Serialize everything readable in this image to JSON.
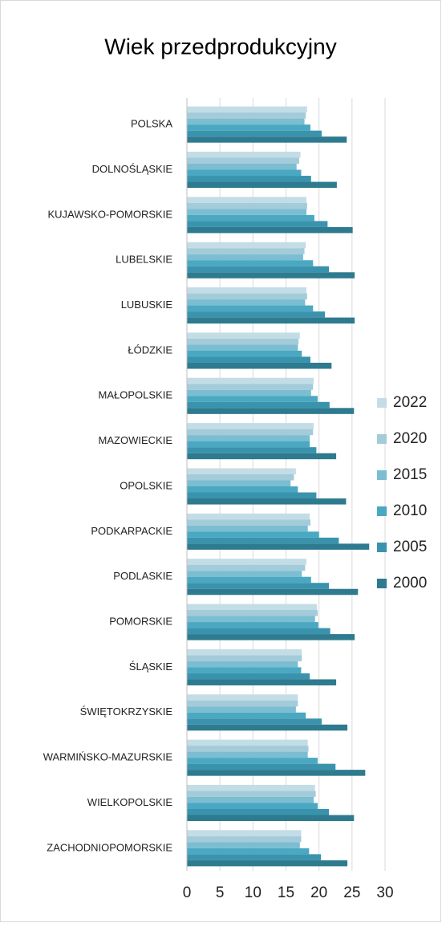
{
  "chart_data": {
    "type": "hbar",
    "title": "Wiek przedprodukcyjny",
    "categories": [
      "POLSKA",
      "DOLNOŚLĄSKIE",
      "KUJAWSKO-POMORSKIE",
      "LUBELSKIE",
      "LUBUSKIE",
      "ŁÓDZKIE",
      "MAŁOPOLSKIE",
      "MAZOWIECKIE",
      "OPOLSKIE",
      "PODKARPACKIE",
      "PODLASKIE",
      "POMORSKIE",
      "ŚLĄSKIE",
      "ŚWIĘTOKRZYSKIE",
      "WARMIŃSKO-MAZURSKIE",
      "WIELKOPOLSKIE",
      "ZACHODNIOPOMORSKIE"
    ],
    "series": [
      {
        "name": "2022",
        "color": "#c3dde6",
        "values": [
          18.2,
          17.2,
          18.1,
          18.0,
          18.1,
          17.1,
          19.2,
          19.2,
          16.5,
          18.6,
          18.1,
          19.7,
          17.4,
          16.8,
          18.3,
          19.4,
          17.3
        ]
      },
      {
        "name": "2020",
        "color": "#a4cbd9",
        "values": [
          18.0,
          17.0,
          18.2,
          17.8,
          18.2,
          16.9,
          19.1,
          19.1,
          16.2,
          18.7,
          17.9,
          19.8,
          17.4,
          16.8,
          18.4,
          19.5,
          17.3
        ]
      },
      {
        "name": "2015",
        "color": "#7bbdd1",
        "values": [
          17.8,
          16.6,
          18.1,
          17.6,
          17.9,
          16.8,
          18.8,
          18.6,
          15.7,
          18.3,
          17.4,
          19.4,
          16.8,
          16.5,
          18.3,
          19.2,
          17.1
        ]
      },
      {
        "name": "2010",
        "color": "#4aa8c2",
        "values": [
          18.7,
          17.3,
          19.3,
          19.1,
          19.1,
          17.4,
          19.8,
          18.6,
          16.8,
          20.0,
          18.8,
          19.9,
          17.3,
          18.0,
          19.8,
          19.8,
          18.5
        ]
      },
      {
        "name": "2005",
        "color": "#3a93ad",
        "values": [
          20.4,
          18.8,
          21.3,
          21.5,
          20.9,
          18.7,
          21.6,
          19.6,
          19.6,
          23.0,
          21.5,
          21.7,
          18.6,
          20.4,
          22.5,
          21.5,
          20.3
        ]
      },
      {
        "name": "2000",
        "color": "#2e7a8f",
        "values": [
          24.2,
          22.7,
          25.1,
          25.4,
          25.4,
          21.9,
          25.3,
          22.6,
          24.1,
          27.6,
          25.9,
          25.4,
          22.6,
          24.3,
          27.0,
          25.3,
          24.3
        ]
      }
    ],
    "xlim": [
      0,
      30
    ],
    "xticks": [
      0,
      5,
      10,
      15,
      20,
      25,
      30
    ],
    "grid": true,
    "legend": "right"
  }
}
